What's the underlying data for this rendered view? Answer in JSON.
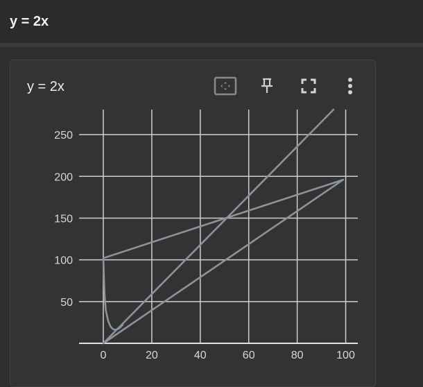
{
  "header": {
    "title": "y = 2x"
  },
  "card": {
    "title": "y = 2x",
    "toolbar": {
      "icons": [
        "fit-domain-icon",
        "pin-icon",
        "fullscreen-icon",
        "more-vert-icon"
      ]
    }
  },
  "colors": {
    "background": "#2f2f2f",
    "card": "#333333",
    "grid": "#d0d0d0",
    "series": "#8d939c"
  },
  "chart_data": {
    "type": "line",
    "title": "",
    "xlabel": "",
    "ylabel": "",
    "xlim": [
      -10,
      105
    ],
    "ylim": [
      0,
      280
    ],
    "x_ticks": [
      0,
      20,
      40,
      60,
      80,
      100
    ],
    "x_tick_labels": [
      "0",
      "20",
      "40",
      "60",
      "80",
      "100"
    ],
    "y_ticks": [
      50,
      100,
      150,
      200,
      250
    ],
    "y_tick_labels": [
      "50",
      "100",
      "150",
      "200",
      "250"
    ],
    "grid": true,
    "series": [
      {
        "name": "",
        "points": [
          [
            0,
            0
          ],
          [
            95,
            280
          ]
        ]
      },
      {
        "name": "",
        "points": [
          [
            0,
            0
          ],
          [
            99,
            196
          ],
          [
            0,
            102
          ],
          [
            0.5,
            60
          ],
          [
            1,
            40
          ],
          [
            2,
            27
          ],
          [
            3,
            20
          ],
          [
            4,
            17
          ],
          [
            5,
            16
          ],
          [
            6,
            17
          ],
          [
            7,
            19
          ],
          [
            8,
            22
          ]
        ]
      }
    ]
  }
}
